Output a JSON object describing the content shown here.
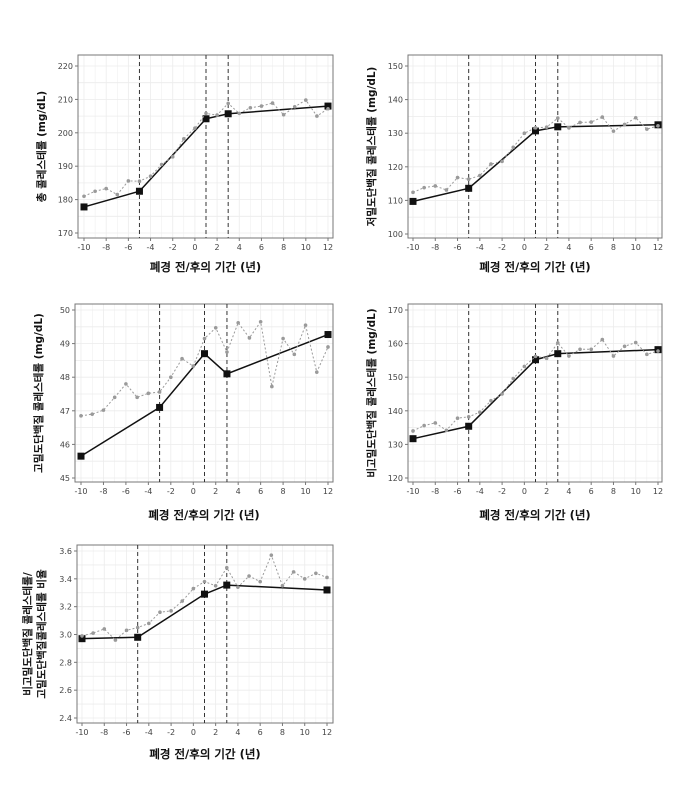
{
  "chart_data": [
    {
      "type": "line",
      "ylabel": [
        "총 콜레스테롤 (mg/dL)"
      ],
      "xlabel": "폐경 전/후의 기간 (년)",
      "xlim": [
        -10,
        12
      ],
      "ylim": [
        170,
        220
      ],
      "xticks": [
        -10,
        -8,
        -6,
        -4,
        -2,
        0,
        2,
        4,
        6,
        8,
        10,
        12
      ],
      "yticks": [
        170,
        180,
        190,
        200,
        210,
        220
      ],
      "vlines": [
        -5,
        1,
        3
      ],
      "grid": true,
      "series": [
        {
          "style": "solid-square",
          "x": [
            -10,
            -5,
            1,
            3,
            12
          ],
          "y": [
            177.8,
            182.5,
            204.2,
            205.7,
            208.0
          ]
        },
        {
          "style": "dotted-dot",
          "x": [
            -10,
            -9,
            -8,
            -7,
            -6,
            -5,
            -4,
            -3,
            -2,
            -1,
            0,
            1,
            2,
            3,
            4,
            5,
            6,
            7,
            8,
            9,
            10,
            11,
            12
          ],
          "y": [
            181.0,
            182.5,
            183.3,
            181.5,
            185.6,
            185.5,
            187.0,
            190.5,
            192.8,
            198.2,
            201.4,
            205.8,
            205.3,
            208.8,
            205.8,
            207.5,
            208.0,
            208.9,
            205.4,
            207.8,
            209.8,
            205.0,
            207.2
          ]
        }
      ]
    },
    {
      "type": "line",
      "ylabel": [
        "저밀도단백질 콜레스테롤 (mg/dL)"
      ],
      "xlabel": "폐경 전/후의 기간 (년)",
      "xlim": [
        -10,
        12
      ],
      "ylim": [
        100,
        150
      ],
      "xticks": [
        -10,
        -8,
        -6,
        -4,
        -2,
        0,
        2,
        4,
        6,
        8,
        10,
        12
      ],
      "yticks": [
        100,
        110,
        120,
        130,
        140,
        150
      ],
      "vlines": [
        -5,
        1,
        3
      ],
      "grid": true,
      "series": [
        {
          "style": "solid-square",
          "x": [
            -10,
            -5,
            1,
            3,
            12
          ],
          "y": [
            109.7,
            113.6,
            130.7,
            131.9,
            132.5
          ]
        },
        {
          "style": "dotted-dot",
          "x": [
            -10,
            -9,
            -8,
            -7,
            -6,
            -5,
            -4,
            -3,
            -2,
            -1,
            0,
            1,
            2,
            3,
            4,
            5,
            6,
            7,
            8,
            9,
            10,
            11,
            12
          ],
          "y": [
            112.4,
            113.8,
            114.3,
            113.1,
            116.8,
            116.3,
            117.4,
            120.8,
            121.6,
            125.8,
            130.0,
            131.6,
            131.8,
            134.5,
            131.6,
            133.2,
            133.3,
            134.8,
            130.6,
            132.6,
            134.6,
            131.2,
            132.2
          ]
        }
      ]
    },
    {
      "type": "line",
      "ylabel": [
        "고밀도단백질 콜레스테롤 (mg/dL)"
      ],
      "xlabel": "폐경 전/후의 기간 (년)",
      "xlim": [
        -10,
        12
      ],
      "ylim": [
        45,
        50
      ],
      "xticks": [
        -10,
        -8,
        -6,
        -4,
        -2,
        0,
        2,
        4,
        6,
        8,
        10,
        12
      ],
      "yticks": [
        45,
        46,
        47,
        48,
        49,
        50
      ],
      "vlines": [
        -3,
        1,
        3
      ],
      "grid": true,
      "series": [
        {
          "style": "solid-square",
          "x": [
            -10,
            -3,
            1,
            3,
            12
          ],
          "y": [
            45.65,
            47.1,
            48.7,
            48.1,
            49.27
          ]
        },
        {
          "style": "dotted-dot",
          "x": [
            -10,
            -9,
            -8,
            -7,
            -6,
            -5,
            -4,
            -3,
            -2,
            -1,
            0,
            1,
            2,
            3,
            4,
            5,
            6,
            7,
            8,
            9,
            10,
            11,
            12
          ],
          "y": [
            46.85,
            46.9,
            47.02,
            47.4,
            47.8,
            47.4,
            47.52,
            47.56,
            48.0,
            48.55,
            48.33,
            49.15,
            49.47,
            48.75,
            49.62,
            49.17,
            49.65,
            47.72,
            49.15,
            48.68,
            49.55,
            48.15,
            48.9
          ]
        }
      ]
    },
    {
      "type": "line",
      "ylabel": [
        "비고밀도단백질 콜레스테롤 (mg/dL)"
      ],
      "xlabel": "폐경 전/후의 기간 (년)",
      "xlim": [
        -10,
        12
      ],
      "ylim": [
        120,
        170
      ],
      "xticks": [
        -10,
        -8,
        -6,
        -4,
        -2,
        0,
        2,
        4,
        6,
        8,
        10,
        12
      ],
      "yticks": [
        120,
        130,
        140,
        150,
        160,
        170
      ],
      "vlines": [
        -5,
        1,
        3
      ],
      "grid": true,
      "series": [
        {
          "style": "solid-square",
          "x": [
            -10,
            -5,
            1,
            3,
            12
          ],
          "y": [
            131.7,
            135.4,
            155.2,
            157.0,
            158.2
          ]
        },
        {
          "style": "dotted-dot",
          "x": [
            -10,
            -9,
            -8,
            -7,
            -6,
            -5,
            -4,
            -3,
            -2,
            -1,
            0,
            1,
            2,
            3,
            4,
            5,
            6,
            7,
            8,
            9,
            10,
            11,
            12
          ],
          "y": [
            134.0,
            135.6,
            136.4,
            134.2,
            137.8,
            138.2,
            139.6,
            143.0,
            145.0,
            149.6,
            153.2,
            156.2,
            155.6,
            160.2,
            156.3,
            158.3,
            158.3,
            161.2,
            156.3,
            159.2,
            160.3,
            156.8,
            157.8
          ]
        }
      ]
    },
    {
      "type": "line",
      "ylabel": [
        "비고밀도단백질 콜레스테롤/",
        "고밀도단백질콜레스테롤 비율"
      ],
      "xlabel": "폐경 전/후의 기간 (년)",
      "xlim": [
        -10,
        12
      ],
      "ylim": [
        2.4,
        3.6
      ],
      "xticks": [
        -10,
        -8,
        -6,
        -4,
        -2,
        0,
        2,
        4,
        6,
        8,
        10,
        12
      ],
      "yticks": [
        "2.4",
        "2.6",
        "2.8",
        "3.0",
        "3.2",
        "3.4",
        "3.6"
      ],
      "vlines": [
        -5,
        1,
        3
      ],
      "grid": true,
      "series": [
        {
          "style": "solid-square",
          "x": [
            -10,
            -5,
            1,
            3,
            12
          ],
          "y": [
            2.97,
            2.98,
            3.29,
            3.355,
            3.32
          ]
        },
        {
          "style": "dotted-dot",
          "x": [
            -10,
            -9,
            -8,
            -7,
            -6,
            -5,
            -4,
            -3,
            -2,
            -1,
            0,
            1,
            2,
            3,
            4,
            5,
            6,
            7,
            8,
            9,
            10,
            11,
            12
          ],
          "y": [
            2.99,
            3.01,
            3.04,
            2.96,
            3.03,
            3.05,
            3.08,
            3.16,
            3.17,
            3.24,
            3.33,
            3.38,
            3.35,
            3.48,
            3.34,
            3.42,
            3.38,
            3.57,
            3.35,
            3.45,
            3.4,
            3.44,
            3.41
          ]
        }
      ]
    }
  ],
  "colors": {
    "solid": "#111111",
    "dotted": "#9a9a9a",
    "grid": "#ececec",
    "frame": "#777777",
    "vline": "#333333"
  }
}
